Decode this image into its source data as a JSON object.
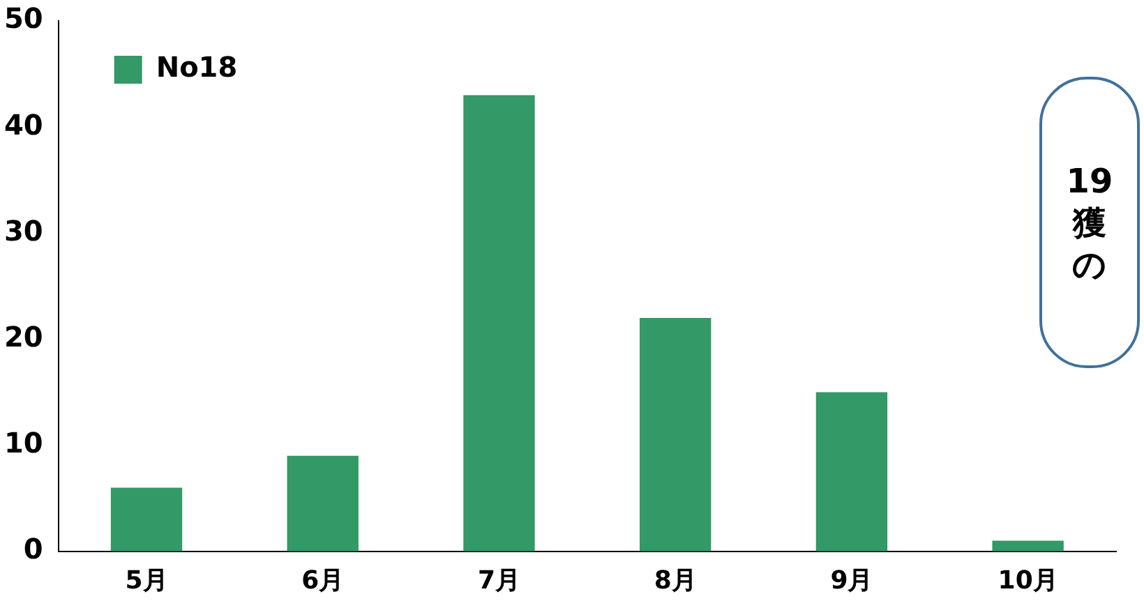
{
  "chart_data": {
    "type": "bar",
    "categories": [
      "5月",
      "6月",
      "7月",
      "8月",
      "9月",
      "10月"
    ],
    "series": [
      {
        "name": "No18",
        "color": "#339966",
        "values": [
          6,
          9,
          43,
          22,
          15,
          1
        ]
      }
    ],
    "ylim": [
      0,
      50
    ],
    "yticks": [
      0,
      10,
      20,
      30,
      40,
      50
    ],
    "grid": false,
    "legend": "top left",
    "annotations": [
      "19",
      "獲",
      "の"
    ]
  }
}
